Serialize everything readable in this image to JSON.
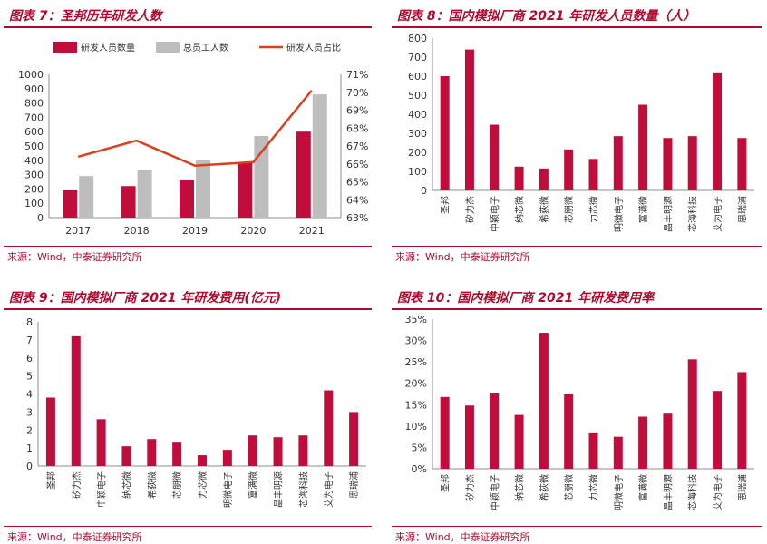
{
  "colors": {
    "accent": "#b10a2e",
    "bar": "#c00d3b",
    "grey": "#bdbdbd",
    "line": "#d9411e",
    "axis": "#8c8c8c"
  },
  "panels": [
    {
      "title": "图表 7：圣邦历年研发人数",
      "source": "来源：Wind，中泰证券研究所"
    },
    {
      "title": "图表 8：国内模拟厂商 2021 年研发人员数量（人）",
      "source": "来源：Wind，中泰证券研究所"
    },
    {
      "title": "图表 9：国内模拟厂商 2021 年研发费用(亿元)",
      "source": "来源：Wind，中泰证券研究所"
    },
    {
      "title": "图表 10：国内模拟厂商 2021 年研发费用率",
      "source": "来源：Wind，中泰证券研究所"
    }
  ],
  "chart_data": [
    {
      "type": "bar",
      "categories": [
        "2017",
        "2018",
        "2019",
        "2020",
        "2021"
      ],
      "series": [
        {
          "name": "研发人员数量",
          "values": [
            190,
            220,
            260,
            380,
            600
          ],
          "axis": "left"
        },
        {
          "name": "总员工人数",
          "values": [
            290,
            330,
            400,
            570,
            860
          ],
          "axis": "left"
        },
        {
          "name": "研发人员占比",
          "type": "line",
          "values": [
            66.4,
            67.3,
            65.9,
            66.1,
            70.1
          ],
          "axis": "right"
        }
      ],
      "ylim": [
        0,
        1000
      ],
      "yticks": [
        "0",
        "100",
        "200",
        "300",
        "400",
        "500",
        "600",
        "700",
        "800",
        "900",
        "1000"
      ],
      "y2lim": [
        63,
        71
      ],
      "y2ticks": [
        "63%",
        "64%",
        "65%",
        "66%",
        "67%",
        "68%",
        "69%",
        "70%",
        "71%"
      ],
      "legend": "top"
    },
    {
      "type": "bar",
      "categories": [
        "圣邦",
        "矽力杰",
        "中颖电子",
        "纳芯微",
        "希荻微",
        "芯朋微",
        "力芯微",
        "明微电子",
        "富满微",
        "晶丰明源",
        "芯海科技",
        "艾为电子",
        "思瑞浦"
      ],
      "values": [
        600,
        740,
        345,
        125,
        115,
        215,
        165,
        285,
        450,
        275,
        285,
        620,
        275
      ],
      "ylim": [
        0,
        800
      ],
      "yticks": [
        "0",
        "100",
        "200",
        "300",
        "400",
        "500",
        "600",
        "700",
        "800"
      ]
    },
    {
      "type": "bar",
      "categories": [
        "圣邦",
        "矽力杰",
        "中颖电子",
        "纳芯微",
        "希荻微",
        "芯朋微",
        "力芯微",
        "明微电子",
        "富满微",
        "晶丰明源",
        "芯海科技",
        "艾为电子",
        "思瑞浦"
      ],
      "values": [
        3.8,
        7.2,
        2.6,
        1.1,
        1.5,
        1.3,
        0.6,
        0.9,
        1.7,
        1.6,
        1.7,
        4.2,
        3.0
      ],
      "ylim": [
        0,
        8
      ],
      "yticks": [
        "0",
        "1",
        "2",
        "3",
        "4",
        "5",
        "6",
        "7",
        "8"
      ]
    },
    {
      "type": "bar",
      "categories": [
        "圣邦",
        "矽力杰",
        "中颖电子",
        "纳芯微",
        "希荻微",
        "芯朋微",
        "力芯微",
        "明微电子",
        "富满微",
        "晶丰明源",
        "芯海科技",
        "艾为电子",
        "思瑞浦"
      ],
      "values": [
        16.8,
        14.8,
        17.6,
        12.6,
        31.8,
        17.4,
        8.3,
        7.5,
        12.2,
        12.9,
        25.6,
        18.2,
        22.6
      ],
      "ylim": [
        0,
        35
      ],
      "yticks": [
        "0%",
        "5%",
        "10%",
        "15%",
        "20%",
        "25%",
        "30%",
        "35%"
      ]
    }
  ]
}
